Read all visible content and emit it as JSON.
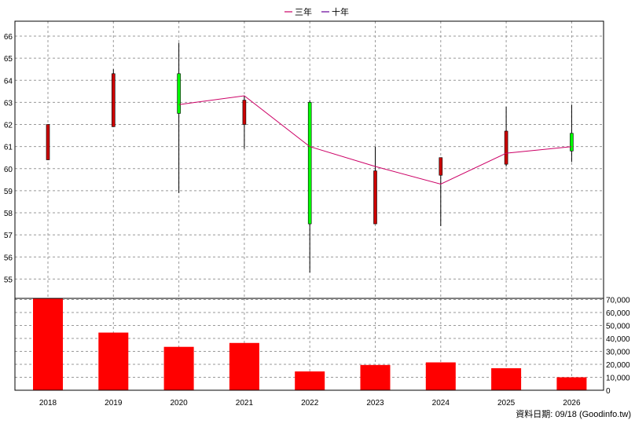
{
  "legend": [
    {
      "label": "三年",
      "color": "#cc0066"
    },
    {
      "label": "十年",
      "color": "#660099"
    }
  ],
  "footer": "資料日期: 09/18  (Goodinfo.tw)",
  "colors": {
    "up": "#00ff00",
    "down": "#cc0000",
    "volume": "#ff0000",
    "line": "#cc0066",
    "grid": "#999999"
  },
  "chart_data": [
    {
      "type": "candlestick",
      "categories": [
        "2018",
        "2019",
        "2020",
        "2021",
        "2022",
        "2023",
        "2024",
        "2025",
        "2026"
      ],
      "ylim": [
        54,
        66.5
      ],
      "yticks": [
        55,
        56,
        57,
        58,
        59,
        60,
        61,
        62,
        63,
        64,
        65,
        66
      ],
      "ohlc": [
        {
          "open": 62.0,
          "high": 62.0,
          "low": 60.4,
          "close": 60.4
        },
        {
          "open": 64.3,
          "high": 64.5,
          "low": 61.9,
          "close": 61.9
        },
        {
          "open": 62.5,
          "high": 65.7,
          "low": 58.9,
          "close": 64.3
        },
        {
          "open": 63.1,
          "high": 63.3,
          "low": 60.9,
          "close": 62.0
        },
        {
          "open": 57.5,
          "high": 63.1,
          "low": 55.3,
          "close": 63.0
        },
        {
          "open": 59.9,
          "high": 61.0,
          "low": 57.5,
          "close": 57.5
        },
        {
          "open": 60.5,
          "high": 60.5,
          "low": 57.4,
          "close": 59.7
        },
        {
          "open": 61.7,
          "high": 62.8,
          "low": 60.1,
          "close": 60.2
        },
        {
          "open": 60.8,
          "high": 62.9,
          "low": 60.3,
          "close": 61.6
        }
      ],
      "series": [
        {
          "name": "三年",
          "x": [
            "2020",
            "2021",
            "2022",
            "2023",
            "2024",
            "2025",
            "2026"
          ],
          "values": [
            62.9,
            63.3,
            61.0,
            60.1,
            59.3,
            60.7,
            61.0
          ]
        }
      ],
      "grid": true
    },
    {
      "type": "bar",
      "categories": [
        "2018",
        "2019",
        "2020",
        "2021",
        "2022",
        "2023",
        "2024",
        "2025",
        "2026"
      ],
      "values": [
        71000,
        44500,
        33500,
        36500,
        14500,
        19500,
        21500,
        17000,
        10000
      ],
      "ylim": [
        0,
        72000
      ],
      "yticks": [
        "0",
        "10,000",
        "20,000",
        "30,000",
        "40,000",
        "50,000",
        "60,000",
        "70,000"
      ],
      "grid": true
    }
  ]
}
